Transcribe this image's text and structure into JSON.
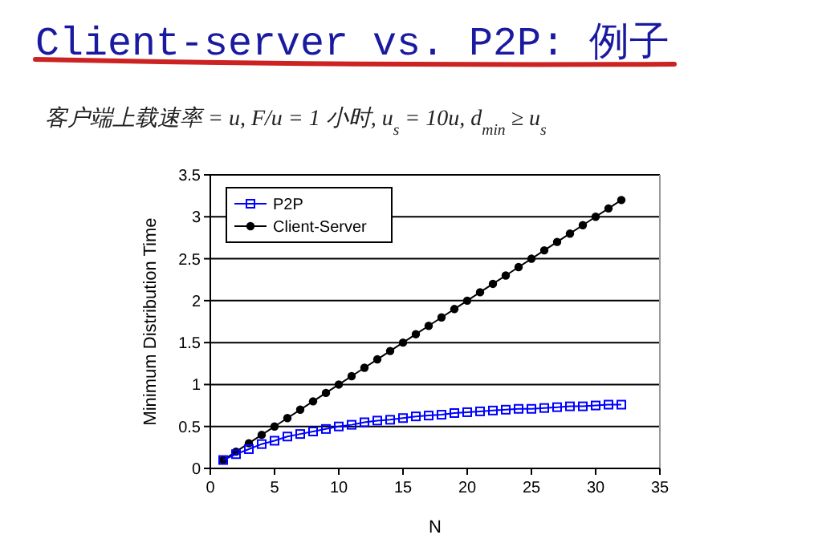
{
  "chart_data": {
    "type": "line",
    "title": "Client-server vs. P2P: 例子",
    "subtitle": "客户端上载速率 = u,   F/u = 1 小时,   u$_{s}$ = 10u,   d$_{min}$ ≥ u$_{s}$",
    "xlabel": "N",
    "ylabel": "Minimum Distribution Time",
    "x": [
      1,
      2,
      3,
      4,
      5,
      6,
      7,
      8,
      9,
      10,
      11,
      12,
      13,
      14,
      15,
      16,
      17,
      18,
      19,
      20,
      21,
      22,
      23,
      24,
      25,
      26,
      27,
      28,
      29,
      30,
      31,
      32
    ],
    "series": [
      {
        "name": "P2P",
        "color": "#0000ff",
        "marker": "square",
        "values": [
          0.1,
          0.17,
          0.23,
          0.29,
          0.33,
          0.38,
          0.41,
          0.44,
          0.47,
          0.5,
          0.52,
          0.55,
          0.57,
          0.58,
          0.6,
          0.62,
          0.63,
          0.64,
          0.66,
          0.67,
          0.68,
          0.69,
          0.7,
          0.71,
          0.71,
          0.72,
          0.73,
          0.74,
          0.74,
          0.75,
          0.76,
          0.76
        ]
      },
      {
        "name": "Client-Server",
        "color": "#000000",
        "marker": "circle",
        "values": [
          0.1,
          0.2,
          0.3,
          0.4,
          0.5,
          0.6,
          0.7,
          0.8,
          0.9,
          1.0,
          1.1,
          1.2,
          1.3,
          1.4,
          1.5,
          1.6,
          1.7,
          1.8,
          1.9,
          2.0,
          2.1,
          2.2,
          2.3,
          2.4,
          2.5,
          2.6,
          2.7,
          2.8,
          2.9,
          3.0,
          3.1,
          3.2
        ]
      }
    ],
    "xlim": [
      0,
      35
    ],
    "xticks": [
      0,
      5,
      10,
      15,
      20,
      25,
      30,
      35
    ],
    "ylim": [
      0,
      3.5
    ],
    "yticks": [
      0,
      0.5,
      1,
      1.5,
      2,
      2.5,
      3,
      3.5
    ],
    "grid": "y",
    "legend": "top left"
  }
}
